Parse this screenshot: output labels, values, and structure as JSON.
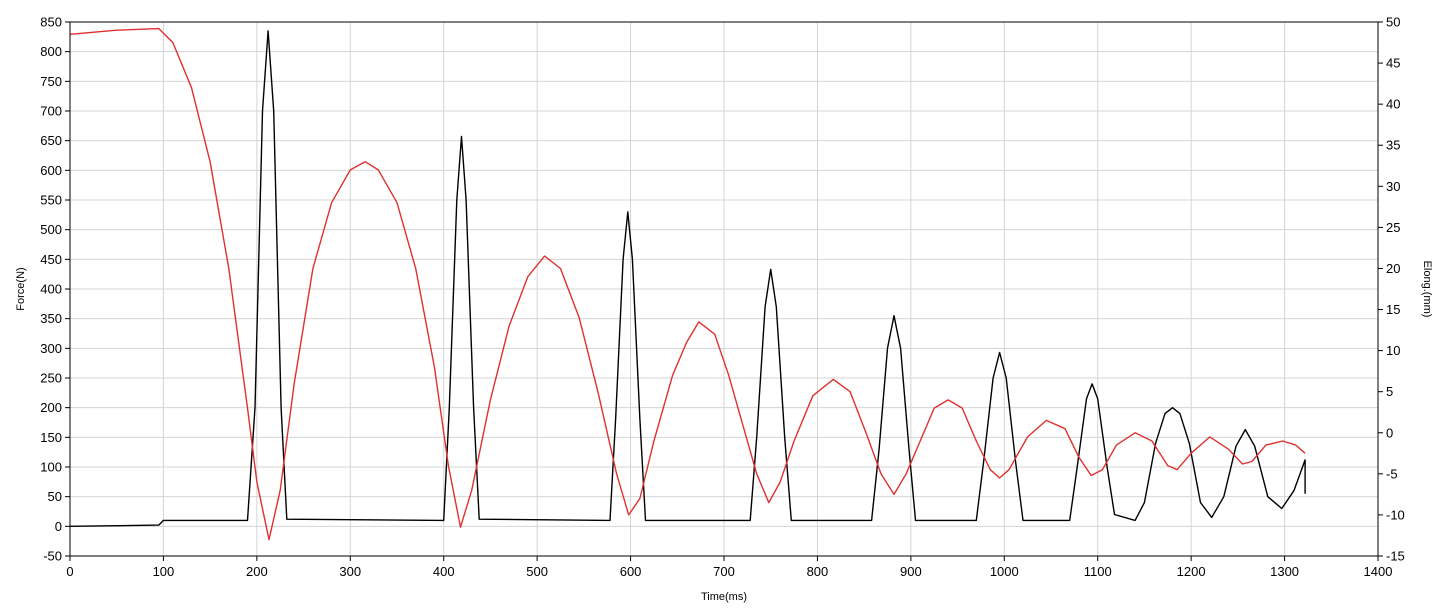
{
  "chart_data": {
    "type": "line",
    "xlabel": "Time(ms)",
    "ylabel": "Force(N)",
    "y2label": "Elong.(mm)",
    "xlim": [
      0,
      1400
    ],
    "ylim": [
      -50,
      850
    ],
    "y2lim": [
      -15,
      50
    ],
    "x_ticks": [
      0,
      100,
      200,
      300,
      400,
      500,
      600,
      700,
      800,
      900,
      1000,
      1100,
      1200,
      1300,
      1400
    ],
    "y_ticks": [
      -50,
      0,
      50,
      100,
      150,
      200,
      250,
      300,
      350,
      400,
      450,
      500,
      550,
      600,
      650,
      700,
      750,
      800,
      850
    ],
    "y2_ticks": [
      -15,
      -10,
      -5,
      0,
      5,
      10,
      15,
      20,
      25,
      30,
      35,
      40,
      45,
      50
    ],
    "grid": true,
    "legend": "none",
    "series": [
      {
        "axis": "left",
        "color": "#000000",
        "points": [
          [
            0,
            0
          ],
          [
            95,
            2
          ],
          [
            100,
            10
          ],
          [
            190,
            10
          ],
          [
            198,
            200
          ],
          [
            206,
            700
          ],
          [
            212,
            835
          ],
          [
            218,
            700
          ],
          [
            226,
            200
          ],
          [
            232,
            12
          ],
          [
            400,
            10
          ],
          [
            406,
            200
          ],
          [
            414,
            550
          ],
          [
            419,
            657
          ],
          [
            424,
            550
          ],
          [
            432,
            200
          ],
          [
            438,
            12
          ],
          [
            578,
            10
          ],
          [
            584,
            180
          ],
          [
            592,
            450
          ],
          [
            597,
            530
          ],
          [
            602,
            450
          ],
          [
            610,
            180
          ],
          [
            616,
            10
          ],
          [
            728,
            10
          ],
          [
            735,
            150
          ],
          [
            744,
            370
          ],
          [
            750,
            433
          ],
          [
            756,
            370
          ],
          [
            765,
            150
          ],
          [
            772,
            10
          ],
          [
            858,
            10
          ],
          [
            866,
            130
          ],
          [
            875,
            300
          ],
          [
            882,
            355
          ],
          [
            889,
            300
          ],
          [
            898,
            130
          ],
          [
            905,
            10
          ],
          [
            970,
            10
          ],
          [
            978,
            110
          ],
          [
            988,
            250
          ],
          [
            995,
            293
          ],
          [
            1002,
            250
          ],
          [
            1012,
            110
          ],
          [
            1020,
            10
          ],
          [
            1070,
            10
          ],
          [
            1078,
            100
          ],
          [
            1088,
            215
          ],
          [
            1094,
            240
          ],
          [
            1100,
            215
          ],
          [
            1110,
            100
          ],
          [
            1118,
            20
          ],
          [
            1140,
            10
          ],
          [
            1150,
            40
          ],
          [
            1162,
            140
          ],
          [
            1172,
            190
          ],
          [
            1180,
            200
          ],
          [
            1188,
            190
          ],
          [
            1198,
            140
          ],
          [
            1210,
            40
          ],
          [
            1222,
            15
          ],
          [
            1235,
            50
          ],
          [
            1248,
            135
          ],
          [
            1258,
            163
          ],
          [
            1268,
            135
          ],
          [
            1282,
            50
          ],
          [
            1297,
            30
          ],
          [
            1310,
            60
          ],
          [
            1322,
            112
          ],
          [
            1322,
            55
          ]
        ]
      },
      {
        "axis": "right",
        "color": "#e03030",
        "points": [
          [
            0,
            48.5
          ],
          [
            50,
            49
          ],
          [
            95,
            49.2
          ],
          [
            110,
            47.5
          ],
          [
            130,
            42
          ],
          [
            150,
            33
          ],
          [
            170,
            20
          ],
          [
            190,
            3
          ],
          [
            200,
            -6
          ],
          [
            213,
            -13
          ],
          [
            225,
            -7
          ],
          [
            240,
            6
          ],
          [
            260,
            20
          ],
          [
            280,
            28
          ],
          [
            300,
            32
          ],
          [
            316,
            33
          ],
          [
            330,
            32
          ],
          [
            350,
            28
          ],
          [
            370,
            20
          ],
          [
            390,
            8
          ],
          [
            405,
            -4
          ],
          [
            418,
            -11.5
          ],
          [
            430,
            -7
          ],
          [
            450,
            4
          ],
          [
            470,
            13
          ],
          [
            490,
            19
          ],
          [
            508,
            21.5
          ],
          [
            525,
            20
          ],
          [
            545,
            14
          ],
          [
            565,
            5
          ],
          [
            585,
            -5
          ],
          [
            598,
            -10
          ],
          [
            610,
            -8
          ],
          [
            625,
            -1
          ],
          [
            645,
            7
          ],
          [
            660,
            11
          ],
          [
            673,
            13.5
          ],
          [
            690,
            12
          ],
          [
            705,
            7
          ],
          [
            720,
            1
          ],
          [
            735,
            -5
          ],
          [
            748,
            -8.5
          ],
          [
            760,
            -6
          ],
          [
            775,
            -1
          ],
          [
            795,
            4.5
          ],
          [
            817,
            6.5
          ],
          [
            835,
            5
          ],
          [
            852,
            0
          ],
          [
            868,
            -5
          ],
          [
            882,
            -7.5
          ],
          [
            895,
            -5
          ],
          [
            910,
            -1
          ],
          [
            925,
            3
          ],
          [
            940,
            4
          ],
          [
            955,
            3
          ],
          [
            970,
            -1
          ],
          [
            985,
            -4.5
          ],
          [
            995,
            -5.5
          ],
          [
            1005,
            -4.5
          ],
          [
            1025,
            -0.5
          ],
          [
            1045,
            1.5
          ],
          [
            1065,
            0.5
          ],
          [
            1080,
            -3
          ],
          [
            1093,
            -5.2
          ],
          [
            1105,
            -4.5
          ],
          [
            1120,
            -1.5
          ],
          [
            1140,
            0
          ],
          [
            1158,
            -1
          ],
          [
            1175,
            -4
          ],
          [
            1185,
            -4.5
          ],
          [
            1200,
            -2.5
          ],
          [
            1220,
            -0.5
          ],
          [
            1240,
            -2
          ],
          [
            1255,
            -3.8
          ],
          [
            1265,
            -3.5
          ],
          [
            1280,
            -1.5
          ],
          [
            1298,
            -1
          ],
          [
            1312,
            -1.5
          ],
          [
            1322,
            -2.5
          ]
        ]
      }
    ]
  }
}
